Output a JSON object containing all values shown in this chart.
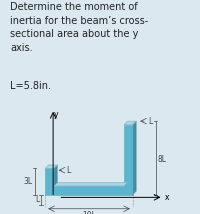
{
  "title_lines": [
    "Determine the moment of",
    "inertia for the beam’s cross-",
    "sectional area about the y",
    "axis."
  ],
  "param_line": "L=5.8in.",
  "bg_color": "#dce8f0",
  "shape_fill": "#5ab5d0",
  "shape_fill_dark": "#3a8fa8",
  "shape_fill_light": "#aad4e8",
  "shape_outline": "#7ab0c0",
  "text_color": "#222222",
  "dim_color": "#444444",
  "L": 1.0,
  "figsize": [
    2.0,
    2.14
  ],
  "dpi": 100
}
